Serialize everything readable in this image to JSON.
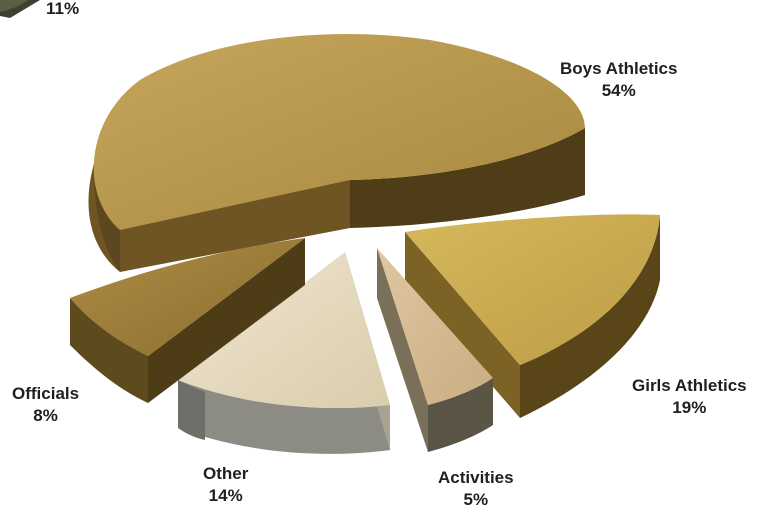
{
  "chart_data": {
    "type": "pie",
    "title": "",
    "slices": [
      {
        "name": "Boys Athletics",
        "value": 54,
        "label": "54%",
        "color": "#b6954a"
      },
      {
        "name": "Girls Athletics",
        "value": 19,
        "label": "19%",
        "color": "#c9a94e"
      },
      {
        "name": "Activities",
        "value": 5,
        "label": "5%",
        "color": "#d3b88f"
      },
      {
        "name": "Other",
        "value": 14,
        "label": "14%",
        "color": "#e4d8bd"
      },
      {
        "name": "Officials",
        "value": 8,
        "label": "8%",
        "color": "#9e7e3a"
      },
      {
        "name": "",
        "value": 11,
        "label": "11%",
        "color": "#52553f"
      }
    ],
    "legend": "none",
    "style": "exploded-3d"
  }
}
